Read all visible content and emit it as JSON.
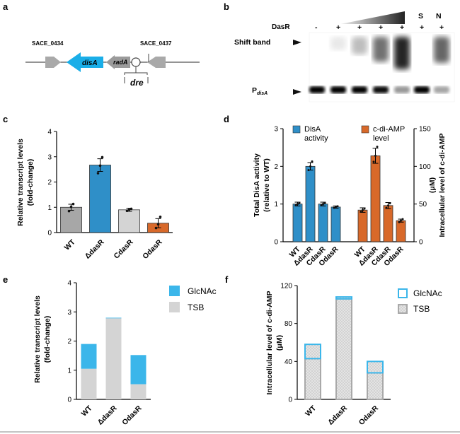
{
  "panel_labels": {
    "a": "a",
    "b": "b",
    "c": "c",
    "d": "d",
    "e": "e",
    "f": "f"
  },
  "panel_a": {
    "left_gene": "SACE_0434",
    "right_gene": "SACE_0437",
    "disA": "disA",
    "radA": "radA",
    "dre": "dre",
    "colors": {
      "disA": "#1aaee8",
      "other_genes": "#a9a9a9"
    }
  },
  "panel_b": {
    "dasr_label": "DasR",
    "lane_marks": [
      "-",
      "+",
      "+",
      "+",
      "+",
      "+",
      "+"
    ],
    "s_label": "S",
    "n_label": "N",
    "shift_band_label": "Shift band",
    "probe_label": "P",
    "probe_sub": "disA"
  },
  "chart_data": [
    {
      "id": "c",
      "type": "bar",
      "categories": [
        "WT",
        "ΔdasR",
        "CdasR",
        "OdasR"
      ],
      "values": [
        1.0,
        2.67,
        0.9,
        0.37
      ],
      "errors": [
        0.12,
        0.25,
        0.06,
        0.18
      ],
      "points": [
        [
          0.85,
          1.02,
          1.13
        ],
        [
          2.35,
          2.65,
          2.98
        ],
        [
          0.86,
          0.91,
          0.94
        ],
        [
          0.18,
          0.33,
          0.62
        ]
      ],
      "colors": [
        "#a7a7a7",
        "#2f8fc8",
        "#d4d4d4",
        "#d8692a"
      ],
      "ylabel": "Relative transcript levels",
      "ylabel2": "(fold-change)",
      "ylim": [
        0,
        4
      ],
      "yticks": [
        "0",
        "1",
        "2",
        "3",
        "4"
      ]
    },
    {
      "id": "d",
      "type": "bar",
      "categories": [
        "WT",
        "ΔdasR",
        "CdasR",
        "OdasR"
      ],
      "series": [
        {
          "name": "DisA activity",
          "name_line1": "DisA",
          "name_line2": "activity",
          "axis": "left",
          "color": "#2f8fc8",
          "values": [
            1.0,
            2.0,
            1.0,
            0.92
          ],
          "errors": [
            0.05,
            0.1,
            0.05,
            0.03
          ],
          "points": [
            [
              0.97,
              1.0,
              1.03
            ],
            [
              1.9,
              2.0,
              2.13
            ],
            [
              0.97,
              1.0,
              1.03
            ],
            [
              0.9,
              0.92,
              0.94
            ]
          ]
        },
        {
          "name": "c-di-AMP level",
          "name_line1": "c-di-AMP",
          "name_line2": "level",
          "axis": "right",
          "color": "#d8692a",
          "values": [
            42,
            114,
            48,
            28
          ],
          "errors": [
            3,
            10,
            4,
            2
          ],
          "points": [
            [
              40,
              42,
              44
            ],
            [
              106,
              114,
              126
            ],
            [
              45,
              48,
              51
            ],
            [
              26,
              28,
              30
            ]
          ]
        }
      ],
      "ylabel_left": "Total DisA activity",
      "ylabel_left2": "(relative to WT)",
      "ylabel_right": "Intracellular level of c-di-AMP",
      "ylabel_right2": "(μM)",
      "ylim_left": [
        0,
        3
      ],
      "ylim_right": [
        0,
        150
      ],
      "yticks_left": [
        "0",
        "1",
        "2",
        "3"
      ],
      "yticks_right": [
        "0",
        "50",
        "100",
        "150"
      ]
    },
    {
      "id": "e",
      "type": "bar",
      "stacked": true,
      "categories": [
        "WT",
        "ΔdasR",
        "OdasR"
      ],
      "series": [
        {
          "name": "TSB",
          "color": "#d4d4d4",
          "values": [
            1.05,
            2.78,
            0.52
          ]
        },
        {
          "name": "GlcNAc",
          "color": "#3bb6ea",
          "values": [
            0.85,
            0.02,
            1.0
          ]
        }
      ],
      "ylabel": "Relative transcript levels",
      "ylabel2": "(fold-change)",
      "ylim": [
        0,
        4
      ],
      "yticks": [
        "0",
        "1",
        "2",
        "3",
        "4"
      ]
    },
    {
      "id": "f",
      "type": "bar",
      "stacked": true,
      "categories": [
        "WT",
        "ΔdasR",
        "OdasR"
      ],
      "series": [
        {
          "name": "TSB",
          "color": "#a9a9a9",
          "fill": "#dcdcdc",
          "values": [
            43,
            106,
            28
          ]
        },
        {
          "name": "GlcNAc",
          "color": "#3bb6ea",
          "values": [
            15,
            2,
            12
          ]
        }
      ],
      "ylabel": "Intracellular level of c-di-AMP",
      "ylabel2": "(μM)",
      "ylim": [
        0,
        120
      ],
      "yticks": [
        "0",
        "40",
        "80",
        "120"
      ]
    }
  ]
}
